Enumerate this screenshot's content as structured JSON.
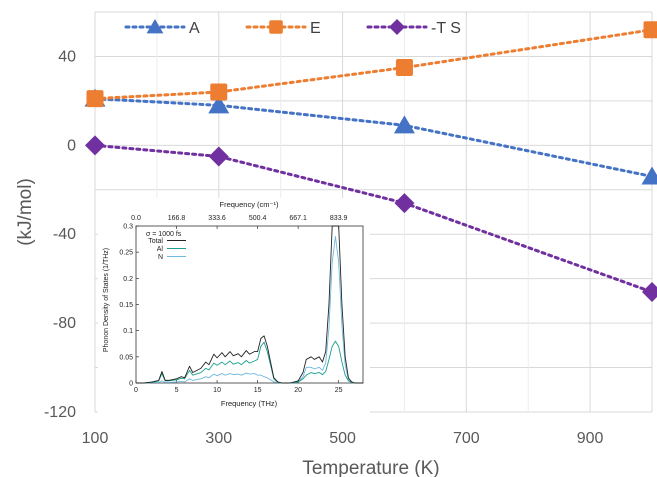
{
  "chart_data": [
    {
      "type": "line",
      "xlabel": "Temperature (K)",
      "ylabel": "(kJ/mol)",
      "xlim": [
        100,
        1000
      ],
      "ylim": [
        -120,
        60
      ],
      "x_ticks": [
        "100",
        "300",
        "500",
        "700",
        "900"
      ],
      "y_ticks": [
        "40",
        "0",
        "-40",
        "-80",
        "-120"
      ],
      "x_tick_values": [
        100,
        300,
        500,
        700,
        900
      ],
      "y_tick_values": [
        40,
        0,
        -40,
        -80,
        -120
      ],
      "grid": true,
      "legend_position": "top",
      "x": [
        100,
        300,
        600,
        1000
      ],
      "series": [
        {
          "name": "A",
          "values": [
            21,
            18,
            9,
            -14
          ],
          "color": "#4472C4",
          "marker": "triangle"
        },
        {
          "name": "E",
          "values": [
            21,
            24,
            35,
            52
          ],
          "color": "#ED7D31",
          "marker": "square"
        },
        {
          "name": "-T S",
          "values": [
            0,
            -5,
            -26,
            -66
          ],
          "color": "#7030A0",
          "marker": "diamond"
        }
      ]
    },
    {
      "type": "line",
      "xlabel": "Frequency (THz)",
      "ylabel": "Phonon Density of States (1/THz)",
      "top_xlabel": "Frequency (cm⁻¹)",
      "xlim": [
        0,
        28
      ],
      "ylim": [
        0,
        0.3
      ],
      "x_ticks": [
        "0",
        "5",
        "10",
        "15",
        "20",
        "25"
      ],
      "x_tick_values": [
        0,
        5,
        10,
        15,
        20,
        25
      ],
      "top_ticks": [
        "0.0",
        "166.8",
        "333.6",
        "500.4",
        "667.1",
        "833.9"
      ],
      "y_ticks": [
        "0",
        "0.05",
        "0.1",
        "0.15",
        "0.2",
        "0.25",
        "0.3"
      ],
      "y_tick_values": [
        0,
        0.05,
        0.1,
        0.15,
        0.2,
        0.25,
        0.3
      ],
      "annotation": "σ = 1000 fs",
      "legend_position": "top-left",
      "x": [
        0,
        1,
        2,
        2.8,
        3.2,
        3.6,
        4,
        5,
        5.6,
        6,
        6.6,
        7,
        8,
        8.6,
        9,
        9.6,
        10,
        10.6,
        11,
        11.6,
        12,
        12.6,
        13,
        13.6,
        14,
        14.6,
        15,
        15.4,
        15.8,
        16.2,
        16.6,
        17,
        17.5,
        18,
        19,
        20,
        20.6,
        21,
        21.6,
        22,
        22.6,
        23,
        23.4,
        23.8,
        24.2,
        24.6,
        25,
        25.4,
        25.8,
        26.2,
        26.6,
        27,
        28
      ],
      "series": [
        {
          "name": "Total",
          "color": "#222222",
          "values": [
            0,
            0,
            0.002,
            0.005,
            0.022,
            0.005,
            0.005,
            0.008,
            0.012,
            0.01,
            0.032,
            0.02,
            0.028,
            0.04,
            0.035,
            0.055,
            0.048,
            0.058,
            0.05,
            0.06,
            0.052,
            0.056,
            0.05,
            0.062,
            0.055,
            0.06,
            0.06,
            0.085,
            0.09,
            0.07,
            0.04,
            0.01,
            0.002,
            0,
            0,
            0.004,
            0.02,
            0.045,
            0.05,
            0.045,
            0.05,
            0.04,
            0.06,
            0.15,
            0.3,
            0.36,
            0.3,
            0.15,
            0.05,
            0.01,
            0.002,
            0,
            0
          ]
        },
        {
          "name": "Al",
          "color": "#1A9E8F",
          "values": [
            0,
            0,
            0.001,
            0.004,
            0.018,
            0.004,
            0.004,
            0.006,
            0.009,
            0.008,
            0.024,
            0.015,
            0.02,
            0.028,
            0.025,
            0.038,
            0.034,
            0.04,
            0.035,
            0.042,
            0.036,
            0.039,
            0.035,
            0.043,
            0.038,
            0.042,
            0.045,
            0.07,
            0.078,
            0.06,
            0.034,
            0.008,
            0.001,
            0,
            0,
            0.002,
            0.008,
            0.015,
            0.02,
            0.018,
            0.02,
            0.016,
            0.022,
            0.045,
            0.07,
            0.08,
            0.07,
            0.04,
            0.015,
            0.004,
            0.001,
            0,
            0
          ]
        },
        {
          "name": "N",
          "color": "#6FB8E0",
          "values": [
            0,
            0,
            0.001,
            0.001,
            0.004,
            0.001,
            0.001,
            0.002,
            0.003,
            0.002,
            0.008,
            0.005,
            0.008,
            0.012,
            0.01,
            0.017,
            0.014,
            0.018,
            0.015,
            0.018,
            0.016,
            0.017,
            0.015,
            0.019,
            0.017,
            0.018,
            0.015,
            0.015,
            0.012,
            0.01,
            0.006,
            0.002,
            0.001,
            0,
            0,
            0.002,
            0.012,
            0.03,
            0.03,
            0.027,
            0.03,
            0.024,
            0.038,
            0.105,
            0.23,
            0.28,
            0.23,
            0.11,
            0.035,
            0.006,
            0.001,
            0,
            0
          ]
        }
      ]
    }
  ]
}
